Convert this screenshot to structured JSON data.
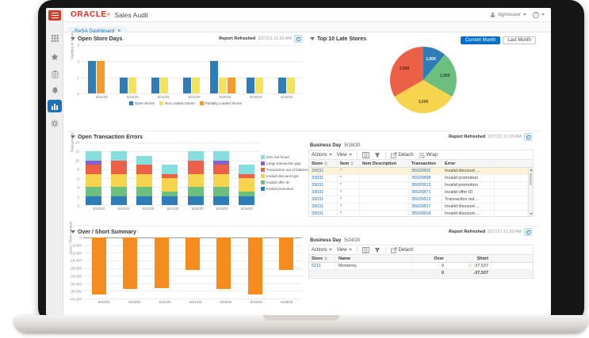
{
  "colors": {
    "accent_blue": "#0572ce",
    "oracle_red": "#e02c1f",
    "sidebar_active_blue": "#1f6fb5",
    "selected_row_bg": "#fcf3d7",
    "bar_orange": "#f58c20"
  },
  "icons": {
    "caret_down": "▾",
    "close": "×",
    "asterisk": "*",
    "warning": "⚠",
    "help": "?"
  },
  "header": {
    "brand": "ORACLE",
    "brand_mark": "®",
    "app_title": "Sales Audit",
    "user_name": "dgmouser"
  },
  "tabs": [
    {
      "label": "ReSA Dashboard",
      "close_glyph": "×"
    }
  ],
  "sidebar": {
    "items": [
      "menu-toggle",
      "grid",
      "favorites",
      "tasks",
      "notifications",
      "reports",
      "settings"
    ],
    "active": "reports"
  },
  "panels": {
    "open_store_days": {
      "title": "Open Store Days",
      "report_refreshed_label": "Report Refreshed",
      "report_refreshed_value": "3/27/21 11:20 AM"
    },
    "top_10_late_stores": {
      "title": "Top 10 Late Stores",
      "current_month_button": "Current Month",
      "last_month_button": "Last Month"
    },
    "open_transaction_errors": {
      "title": "Open Transaction Errors",
      "report_refreshed_label": "Report Refreshed",
      "report_refreshed_value": "3/27/21 11:20 AM",
      "business_day_label": "Business Day",
      "business_day_value": "5/18/20",
      "toolbar": {
        "actions": "Actions",
        "view": "View",
        "detach": "Detach",
        "wrap": "Wrap"
      },
      "columns": [
        "Store",
        "Item",
        "Item Description",
        "Transaction",
        "Error"
      ],
      "rows": [
        {
          "store": "33031",
          "item": "*",
          "item_description": "",
          "transaction": "35020802",
          "error": "Invalid discount ...",
          "selected": true
        },
        {
          "store": "33031",
          "item": "*",
          "item_description": "",
          "transaction": "35020898",
          "error": "Invalid promotion",
          "selected": false
        },
        {
          "store": "33031",
          "item": "*",
          "item_description": "",
          "transaction": "35020813",
          "error": "Invalid promotion",
          "selected": false
        },
        {
          "store": "33031",
          "item": "*",
          "item_description": "",
          "transaction": "35020871",
          "error": "Invalid offer ID",
          "selected": false
        },
        {
          "store": "33031",
          "item": "*",
          "item_description": "",
          "transaction": "35020813",
          "error": "Transaction out ...",
          "selected": false
        },
        {
          "store": "33031",
          "item": "*",
          "item_description": "",
          "transaction": "35020817",
          "error": "Invalid discount ...",
          "selected": false
        },
        {
          "store": "33031",
          "item": "*",
          "item_description": "",
          "transaction": "35020818",
          "error": "Invalid discount ...",
          "selected": false
        }
      ]
    },
    "over_short_summary": {
      "title": "Over / Short Summary",
      "report_refreshed_label": "Report Refreshed",
      "report_refreshed_value": "3/27/21 11:20 AM",
      "business_day_label": "Business Day",
      "business_day_value": "5/24/20",
      "toolbar": {
        "actions": "Actions",
        "view": "View",
        "detach": "Detach"
      },
      "columns": [
        "Store",
        "Name",
        "Over",
        "Short"
      ],
      "rows": [
        {
          "store": "5211",
          "name": "Monterey",
          "over": "0",
          "short": "-37,537",
          "warning": true
        }
      ],
      "summary_row": {
        "over": "0",
        "short": "-37,537"
      }
    }
  },
  "chart_data": [
    {
      "id": "open-store-days",
      "type": "bar",
      "title": "Open Store Days",
      "categories": [
        "5/24/20",
        "5/23/20",
        "5/22/20",
        "5/21/20",
        "5/20/20",
        "5/19/20",
        "5/18/20"
      ],
      "series": [
        {
          "name": "Open Stores",
          "color": "#2e7cb8",
          "values": [
            2,
            1,
            1,
            1,
            2,
            1,
            1
          ]
        },
        {
          "name": "Not Loaded Stores",
          "color": "#f2e25e",
          "values": [
            0,
            1,
            1,
            1,
            1,
            1,
            1
          ]
        },
        {
          "name": "Partially Loaded Stores",
          "color": "#f59b2d",
          "values": [
            2,
            0,
            0,
            0,
            1,
            0,
            0
          ]
        }
      ],
      "xlabel": "",
      "ylabel": "Number of Stores",
      "yticks": [
        0,
        1,
        2,
        3
      ],
      "ylim": [
        0,
        3
      ],
      "grid": true,
      "legend_position": "bottom"
    },
    {
      "id": "top-10-late-stores",
      "type": "pie",
      "title": "Top 10 Late Stores",
      "slices": [
        {
          "label": "1,000",
          "value": 1000,
          "color": "#2e7cb8",
          "label_color": "#ffffff"
        },
        {
          "label": "2,000",
          "value": 2000,
          "color": "#6dbf7f",
          "label_color": "#27492d"
        },
        {
          "label": "3,000",
          "value": 3000,
          "color": "#f6d44d",
          "label_color": "#5c4b10"
        },
        {
          "label": "3,000",
          "value": 3000,
          "color": "#ec6047",
          "label_color": "#58180e"
        }
      ],
      "start_angle_deg": 0
    },
    {
      "id": "open-transaction-errors",
      "type": "stacked-bar",
      "title": "Open Transaction Errors",
      "categories": [
        "5/24/20",
        "5/23/20",
        "5/22/20",
        "5/21/20",
        "5/20/20",
        "5/19/20",
        "5/18/20"
      ],
      "series": [
        {
          "name": "Invalid promotion",
          "color": "#2e7cb8",
          "values": [
            2,
            2,
            2,
            2,
            2,
            2,
            2
          ]
        },
        {
          "name": "Invalid offer ID",
          "color": "#6dbf7f",
          "values": [
            2,
            2,
            2,
            1,
            2,
            2,
            1
          ]
        },
        {
          "name": "Invalid discount type",
          "color": "#f6d44d",
          "values": [
            3,
            3,
            3,
            3,
            3,
            3,
            3
          ]
        },
        {
          "name": "Transaction out of balance",
          "color": "#ec6047",
          "values": [
            2,
            3,
            2,
            1,
            3,
            2,
            1
          ]
        },
        {
          "name": "Large transaction gap",
          "color": "#8561c8",
          "values": [
            1,
            0,
            0,
            0,
            0,
            1,
            0
          ]
        },
        {
          "name": "Item not found",
          "color": "#86dfdd",
          "values": [
            2,
            2,
            2,
            2,
            2,
            2,
            2
          ]
        }
      ],
      "xlabel": "",
      "ylabel": "Transactions",
      "yticks": [
        0,
        2,
        4,
        6,
        8,
        10,
        12,
        14
      ],
      "ylim": [
        0,
        14
      ],
      "grid": true,
      "legend_position": "right",
      "legend_order": "reversed"
    },
    {
      "id": "over-short-summary",
      "type": "bar",
      "title": "Over / Short Summary",
      "categories": [
        "5/24/20",
        "5/23/20",
        "5/22/20",
        "5/21/20",
        "5/20/20",
        "5/19/20",
        "5/18/20"
      ],
      "series": [
        {
          "name": "Over / Short",
          "color": "#f58c20",
          "values": [
            -37537,
            -34000,
            -33000,
            -21500,
            -34000,
            -37537,
            -21500
          ]
        }
      ],
      "xlabel": "",
      "ylabel": "Over / Short Amount",
      "yticks": [
        0,
        -5000,
        -10000,
        -15000,
        -20000,
        -25000,
        -30000,
        -35000,
        -40000
      ],
      "ylim": [
        -40000,
        0
      ],
      "grid": true,
      "legend_position": "none"
    }
  ]
}
